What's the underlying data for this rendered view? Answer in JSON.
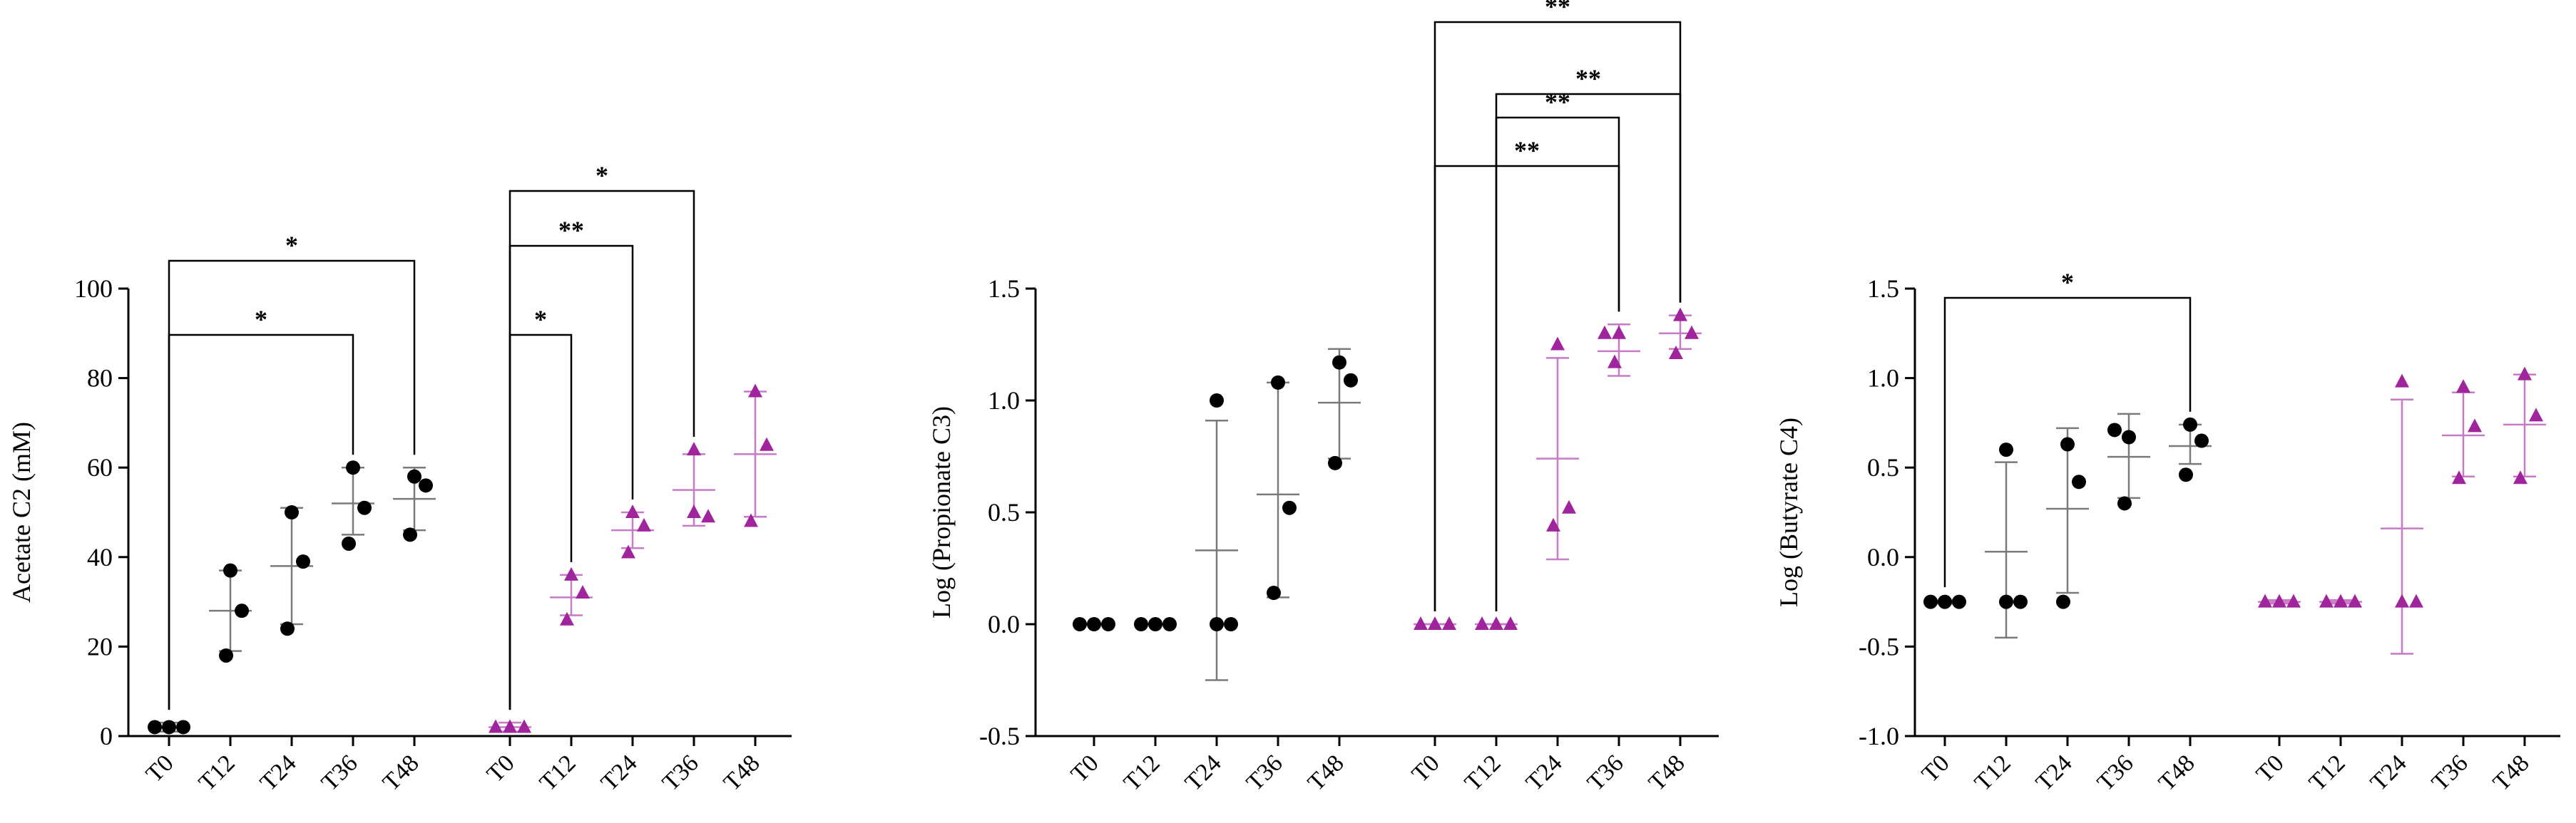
{
  "colors": {
    "group_a": "#000000",
    "group_b": "#a0249c"
  },
  "chart_data": [
    {
      "type": "scatter",
      "ylabel": "Acetate C2 (mM)",
      "ylim": [
        0,
        100
      ],
      "yticks": [
        0,
        20,
        40,
        60,
        80,
        100
      ],
      "grid": false,
      "categories": [
        "T0",
        "T12",
        "T24",
        "T36",
        "T48",
        "T0",
        "T12",
        "T24",
        "T36",
        "T48"
      ],
      "series": [
        {
          "marker": "circle",
          "color": "#000000",
          "points": [
            [
              2,
              2,
              2
            ],
            [
              37,
              28,
              18
            ],
            [
              50,
              39,
              24
            ],
            [
              60,
              51,
              43
            ],
            [
              58,
              56,
              45
            ]
          ],
          "mean": [
            2,
            28,
            38,
            52,
            53
          ],
          "sd": [
            [
              1,
              3
            ],
            [
              19,
              37
            ],
            [
              25,
              51
            ],
            [
              45,
              60
            ],
            [
              46,
              60
            ]
          ]
        },
        {
          "marker": "triangle",
          "color": "#a0249c",
          "points": [
            [
              2,
              2,
              2
            ],
            [
              36,
              32,
              26
            ],
            [
              50,
              47,
              41
            ],
            [
              64,
              50,
              49
            ],
            [
              77,
              65,
              48
            ]
          ],
          "mean": [
            2,
            31,
            46,
            55,
            63
          ],
          "sd": [
            [
              1,
              3
            ],
            [
              27,
              36
            ],
            [
              42,
              50
            ],
            [
              47,
              63
            ],
            [
              49,
              77
            ]
          ]
        }
      ],
      "annotations": [
        {
          "from": 0,
          "to": 3,
          "label": "*"
        },
        {
          "from": 0,
          "to": 4,
          "label": "*"
        },
        {
          "from": 5,
          "to": 6,
          "label": "*"
        },
        {
          "from": 5,
          "to": 7,
          "label": "**"
        },
        {
          "from": 5,
          "to": 8,
          "label": "*"
        }
      ]
    },
    {
      "type": "scatter",
      "ylabel": "Log (Propionate C3)",
      "ylim": [
        -0.5,
        1.5
      ],
      "yticks": [
        -0.5,
        0.0,
        0.5,
        1.0,
        1.5
      ],
      "grid": false,
      "categories": [
        "T0",
        "T12",
        "T24",
        "T36",
        "T48",
        "T0",
        "T12",
        "T24",
        "T36",
        "T48"
      ],
      "series": [
        {
          "marker": "circle",
          "color": "#000000",
          "points": [
            [
              0,
              0,
              0
            ],
            [
              0,
              0,
              0
            ],
            [
              1.0,
              0,
              0
            ],
            [
              1.08,
              0.52,
              0.14
            ],
            [
              1.17,
              1.09,
              0.72
            ]
          ],
          "mean": [
            0,
            0,
            0.33,
            0.58,
            0.99
          ],
          "sd": [
            [
              0,
              0
            ],
            [
              0,
              0
            ],
            [
              -0.25,
              0.91
            ],
            [
              0.12,
              1.08
            ],
            [
              0.74,
              1.23
            ]
          ]
        },
        {
          "marker": "triangle",
          "color": "#a0249c",
          "points": [
            [
              0,
              0,
              0
            ],
            [
              0,
              0,
              0
            ],
            [
              1.25,
              0.52,
              0.44
            ],
            [
              1.3,
              1.3,
              1.17
            ],
            [
              1.38,
              1.3,
              1.21
            ]
          ],
          "mean": [
            0,
            0,
            0.74,
            1.22,
            1.3
          ],
          "sd": [
            [
              0,
              0
            ],
            [
              0,
              0
            ],
            [
              0.29,
              1.19
            ],
            [
              1.11,
              1.34
            ],
            [
              1.23,
              1.38
            ]
          ]
        }
      ],
      "annotations": [
        {
          "from": 5,
          "to": 8,
          "label": "**"
        },
        {
          "from": 6,
          "to": 8,
          "label": "**"
        },
        {
          "from": 6,
          "to": 9,
          "label": "**"
        },
        {
          "from": 5,
          "to": 9,
          "label": "**"
        }
      ]
    },
    {
      "type": "scatter",
      "ylabel": "Log (Butyrate C4)",
      "ylim": [
        -1.0,
        1.5
      ],
      "yticks": [
        -1.0,
        -0.5,
        0.0,
        0.5,
        1.0,
        1.5
      ],
      "grid": false,
      "categories": [
        "T0",
        "T12",
        "T24",
        "T36",
        "T48",
        "T0",
        "T12",
        "T24",
        "T36",
        "T48"
      ],
      "series": [
        {
          "marker": "circle",
          "color": "#000000",
          "points": [
            [
              -0.25,
              -0.25,
              -0.25
            ],
            [
              0.6,
              -0.25,
              -0.25
            ],
            [
              0.63,
              0.42,
              -0.25
            ],
            [
              0.71,
              0.67,
              0.3
            ],
            [
              0.74,
              0.65,
              0.46
            ]
          ],
          "mean": [
            -0.25,
            0.03,
            0.27,
            0.56,
            0.62
          ],
          "sd": [
            [
              -0.26,
              -0.24
            ],
            [
              -0.45,
              0.53
            ],
            [
              -0.2,
              0.72
            ],
            [
              0.33,
              0.8
            ],
            [
              0.52,
              0.74
            ]
          ]
        },
        {
          "marker": "triangle",
          "color": "#a0249c",
          "points": [
            [
              -0.25,
              -0.25,
              -0.25
            ],
            [
              -0.25,
              -0.25,
              -0.25
            ],
            [
              0.98,
              -0.25,
              -0.25
            ],
            [
              0.95,
              0.73,
              0.44
            ],
            [
              1.02,
              0.79,
              0.44
            ]
          ],
          "mean": [
            -0.25,
            -0.25,
            0.16,
            0.68,
            0.74
          ],
          "sd": [
            [
              -0.26,
              -0.24
            ],
            [
              -0.26,
              -0.24
            ],
            [
              -0.54,
              0.88
            ],
            [
              0.45,
              0.92
            ],
            [
              0.45,
              1.02
            ]
          ]
        }
      ],
      "annotations": [
        {
          "from": 0,
          "to": 4,
          "label": "*"
        }
      ]
    }
  ]
}
